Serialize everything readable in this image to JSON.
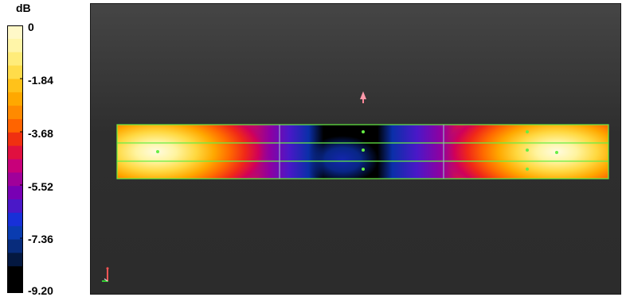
{
  "legend": {
    "unit": "dB",
    "ticks": [
      "0",
      "-1.84",
      "-3.68",
      "-5.52",
      "-7.36",
      "-9.20"
    ],
    "band_colors": [
      "#fff8c8",
      "#fff5a8",
      "#ffec7a",
      "#ffdc4a",
      "#ffc21a",
      "#ffa800",
      "#ff8a00",
      "#ff6400",
      "#f03010",
      "#e01040",
      "#c8007a",
      "#a0009a",
      "#7800b4",
      "#4a18c8",
      "#1830d8",
      "#0a3cb0",
      "#082c7c",
      "#041840",
      "#000000",
      "#000000"
    ]
  },
  "viewport": {
    "background": "#333333",
    "mesh_line_color": "#66ee44",
    "axis_colors": {
      "x": "#33cc33",
      "y": "#ff5555",
      "z": "#ffffff"
    }
  }
}
